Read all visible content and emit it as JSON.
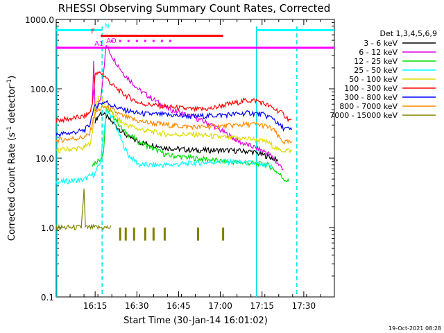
{
  "chart_data": {
    "type": "line",
    "title": "RHESSI Observing Summary Count Rates, Corrected",
    "xlabel": "Start Time (30-Jan-14 16:01:02)",
    "ylabel_main": "Corrected Count Rate (s",
    "ylabel_sup1": "-1",
    "ylabel_mid": " detector",
    "ylabel_sup2": "-1",
    "ylabel_end": ")",
    "yscale": "log",
    "ylim": [
      0.1,
      1000
    ],
    "xlim_minutes": [
      0,
      100
    ],
    "x_ticks": [
      {
        "minute": 14,
        "label": "16:15"
      },
      {
        "minute": 29,
        "label": "16:30"
      },
      {
        "minute": 44,
        "label": "16:45"
      },
      {
        "minute": 59,
        "label": "17:00"
      },
      {
        "minute": 74,
        "label": "17:15"
      },
      {
        "minute": 89,
        "label": "17:30"
      }
    ],
    "y_ticks": [
      {
        "value": 1000,
        "label": "1000.0"
      },
      {
        "value": 100,
        "label": "100.0"
      },
      {
        "value": 10,
        "label": "10.0"
      },
      {
        "value": 1,
        "label": "1.0"
      },
      {
        "value": 0.1,
        "label": "0.1"
      }
    ],
    "legend_title": "Det 1,3,4,5,6,9",
    "legend_position": "right",
    "series": [
      {
        "name": "3 - 6 keV",
        "color": "#000000",
        "x": [
          0,
          10,
          12,
          14,
          16,
          18,
          22,
          26,
          30,
          40,
          50,
          60,
          70,
          75,
          78,
          80,
          82
        ],
        "y": [
          null,
          null,
          null,
          35,
          45,
          40,
          28,
          20,
          17,
          14,
          13,
          13,
          12.5,
          11,
          10,
          9,
          null
        ]
      },
      {
        "name": "6 - 12 keV",
        "color": "#dd00dd",
        "x": [
          13,
          13.5,
          14,
          16,
          18,
          20,
          24,
          30,
          40,
          50,
          56,
          60,
          66,
          72,
          76,
          78,
          80,
          82
        ],
        "y": [
          60,
          240,
          45,
          75,
          420,
          300,
          170,
          95,
          52,
          38,
          30,
          24,
          17,
          14,
          12,
          10,
          8,
          7
        ]
      },
      {
        "name": "12 - 25 keV",
        "color": "#00dd00",
        "x": [
          0,
          12,
          13,
          16,
          17,
          18,
          20,
          24,
          30,
          40,
          50,
          60,
          70,
          76,
          78,
          80,
          82,
          84,
          85
        ],
        "y": [
          null,
          null,
          8,
          10,
          12,
          50,
          45,
          25,
          17,
          11,
          10,
          9,
          8.5,
          8,
          7,
          6,
          5,
          4.5,
          null
        ]
      },
      {
        "name": "25 - 50 keV",
        "color": "#00ffff",
        "x": [
          0,
          5,
          10,
          12,
          14,
          16,
          18,
          20,
          22,
          24,
          26,
          30,
          40,
          50,
          60,
          70,
          78,
          80
        ],
        "y": [
          4.5,
          4.7,
          4.9,
          5.5,
          6,
          9,
          48,
          40,
          25,
          16,
          11,
          8,
          8,
          8.5,
          9,
          8.5,
          7.5,
          null
        ]
      },
      {
        "name": "50 - 100 keV",
        "color": "#dddd00",
        "x": [
          0,
          5,
          10,
          12,
          13,
          14,
          16,
          18,
          20,
          24,
          30,
          40,
          50,
          60,
          70,
          76,
          78,
          80,
          82,
          84,
          85
        ],
        "y": [
          13,
          13.5,
          14,
          16,
          22,
          60,
          80,
          55,
          45,
          32,
          26,
          22,
          22,
          20,
          19,
          17,
          15,
          13,
          13,
          13,
          12
        ]
      },
      {
        "name": "100 - 300 keV",
        "color": "#ff0000",
        "x": [
          0,
          5,
          10,
          12,
          13,
          14,
          16,
          18,
          20,
          24,
          30,
          40,
          50,
          56,
          60,
          64,
          68,
          72,
          76,
          78,
          80,
          82,
          84,
          85
        ],
        "y": [
          35,
          37,
          40,
          45,
          60,
          160,
          170,
          145,
          115,
          85,
          62,
          55,
          50,
          52,
          58,
          62,
          68,
          68,
          58,
          52,
          48,
          42,
          35,
          35
        ]
      },
      {
        "name": "300 - 800 keV",
        "color": "#0000ff",
        "x": [
          0,
          5,
          10,
          12,
          13,
          14,
          16,
          18,
          20,
          24,
          30,
          40,
          50,
          60,
          70,
          74,
          76,
          78,
          80,
          82,
          84,
          85
        ],
        "y": [
          22,
          23,
          25,
          30,
          45,
          55,
          62,
          65,
          58,
          50,
          44,
          42,
          40,
          42,
          45,
          43,
          40,
          38,
          30,
          27,
          26,
          25
        ]
      },
      {
        "name": "800 - 7000 keV",
        "color": "#ff8800",
        "x": [
          0,
          5,
          10,
          12,
          13,
          14,
          16,
          18,
          20,
          24,
          30,
          40,
          50,
          60,
          70,
          74,
          76,
          78,
          80,
          82,
          84,
          85
        ],
        "y": [
          18,
          19,
          20,
          22,
          32,
          45,
          52,
          55,
          50,
          40,
          34,
          30,
          28,
          29,
          31,
          30,
          28,
          26,
          20,
          17,
          17,
          16
        ]
      },
      {
        "name": "7000 - 15000 keV",
        "color": "#808000",
        "x": [
          0,
          5,
          9,
          10,
          10.5,
          11,
          13,
          18,
          20
        ],
        "y": [
          1,
          1,
          1,
          3.5,
          1,
          1,
          1,
          1,
          1
        ]
      }
    ],
    "olive_spikes_minutes": [
      23,
      25,
      28,
      32,
      35,
      39,
      51,
      60
    ],
    "attenuator_vlines_minutes": [
      16.5,
      72,
      86.5
    ],
    "night_shading_minutes": [
      [
        0,
        16.5
      ],
      [
        72,
        86.5
      ]
    ],
    "flag_bars": [
      {
        "label": "N",
        "color": "#00ffff",
        "x": [
          0,
          16.5
        ],
        "x2": [
          72,
          100
        ],
        "y": 700
      },
      {
        "label": "F",
        "color": "#ff0000",
        "x": [
          16,
          60
        ],
        "y": 580
      },
      {
        "label": "AO",
        "color": "#ff00ff",
        "dots_x": [
          20,
          23,
          26,
          29,
          32,
          35,
          38,
          41
        ],
        "y": 490
      },
      {
        "label": "A1",
        "color": "#ff00ff",
        "x": [
          0,
          100
        ],
        "y": 390
      }
    ],
    "timestamp": "19-Oct-2021 08:28"
  }
}
